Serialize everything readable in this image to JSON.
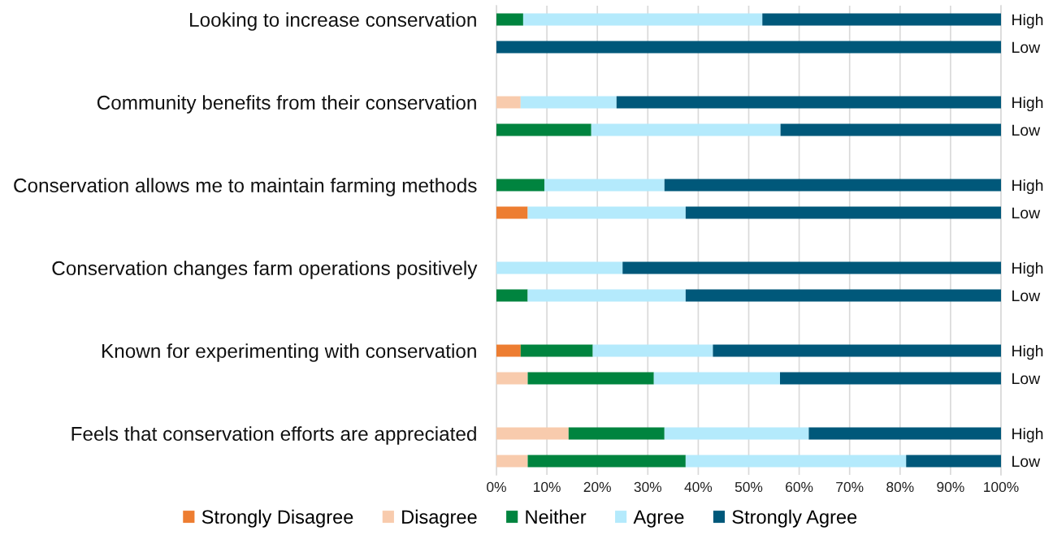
{
  "chart_data": {
    "type": "bar",
    "orientation": "horizontal",
    "stacked": true,
    "categories": [
      "Looking to increase conservation",
      null,
      null,
      "Community benefits from their conservation",
      null,
      null,
      "Conservation allows me to maintain farming methods",
      null,
      null,
      "Conservation changes farm operations positively",
      null,
      null,
      "Known for experimenting with conservation",
      null,
      null,
      "Feels that conservation efforts are appreciated",
      null
    ],
    "y2_categories": [
      "High",
      "Low",
      null,
      "High",
      "Low",
      null,
      "High",
      "Low",
      null,
      "High",
      "Low",
      null,
      "High",
      "Low",
      null,
      "High",
      "Low"
    ],
    "series": [
      {
        "name": "Strongly Disagree",
        "color": "#ed7d31",
        "values": [
          null,
          null,
          null,
          null,
          null,
          null,
          null,
          6.2,
          null,
          null,
          null,
          null,
          4.8,
          null,
          null,
          null,
          null
        ]
      },
      {
        "name": "Disagree",
        "color": "#f8cbad",
        "values": [
          null,
          null,
          null,
          4.8,
          null,
          null,
          null,
          null,
          null,
          null,
          null,
          null,
          null,
          6.2,
          null,
          14.3,
          6.2
        ]
      },
      {
        "name": "Neither",
        "color": "#00843f",
        "values": [
          5.3,
          null,
          null,
          null,
          18.8,
          null,
          9.5,
          null,
          null,
          null,
          6.2,
          null,
          14.3,
          25.0,
          null,
          19.0,
          31.3
        ]
      },
      {
        "name": "Agree",
        "color": "#b4eafc",
        "values": [
          47.4,
          null,
          null,
          19.0,
          37.5,
          null,
          23.8,
          31.3,
          null,
          25.0,
          31.3,
          null,
          23.8,
          25.0,
          null,
          28.6,
          43.7
        ]
      },
      {
        "name": "Strongly Agree",
        "color": "#00587a",
        "values": [
          47.3,
          100,
          null,
          76.2,
          43.7,
          null,
          66.7,
          62.5,
          null,
          75.0,
          62.5,
          null,
          57.1,
          43.8,
          null,
          38.1,
          18.8
        ]
      }
    ],
    "xlim": [
      0,
      100
    ],
    "xticks": [
      {
        "value": 0,
        "label": "0%"
      },
      {
        "value": 10,
        "label": "10%"
      },
      {
        "value": 20,
        "label": "20%"
      },
      {
        "value": 30,
        "label": "30%"
      },
      {
        "value": 40,
        "label": "40%"
      },
      {
        "value": 50,
        "label": "50%"
      },
      {
        "value": 60,
        "label": "60%"
      },
      {
        "value": 70,
        "label": "70%"
      },
      {
        "value": 80,
        "label": "80%"
      },
      {
        "value": 90,
        "label": "90%"
      },
      {
        "value": 100,
        "label": "100%"
      }
    ],
    "grid": "x",
    "legend": "bottom"
  }
}
